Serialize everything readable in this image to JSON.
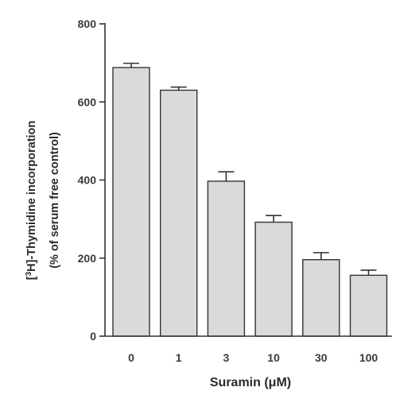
{
  "chart_data": {
    "type": "bar",
    "categories": [
      "0",
      "1",
      "3",
      "10",
      "30",
      "100"
    ],
    "values": [
      688,
      630,
      397,
      292,
      196,
      156
    ],
    "errors": [
      11,
      8,
      24,
      17,
      18,
      13
    ],
    "ylim": [
      0,
      800
    ],
    "yticks": [
      "0",
      "200",
      "400",
      "600",
      "800"
    ],
    "ytick_values": [
      0,
      200,
      400,
      600,
      800
    ],
    "xlabel": "Suramin  (μM)",
    "ylabel_line1_prefix": "[",
    "ylabel_line1_sup": "3",
    "ylabel_line1_rest": "H]-Thymidine incorporation",
    "ylabel_line2": "(% of serum free control)",
    "bar_color": "#dadada",
    "edge_color": "#333333",
    "grid": false
  }
}
